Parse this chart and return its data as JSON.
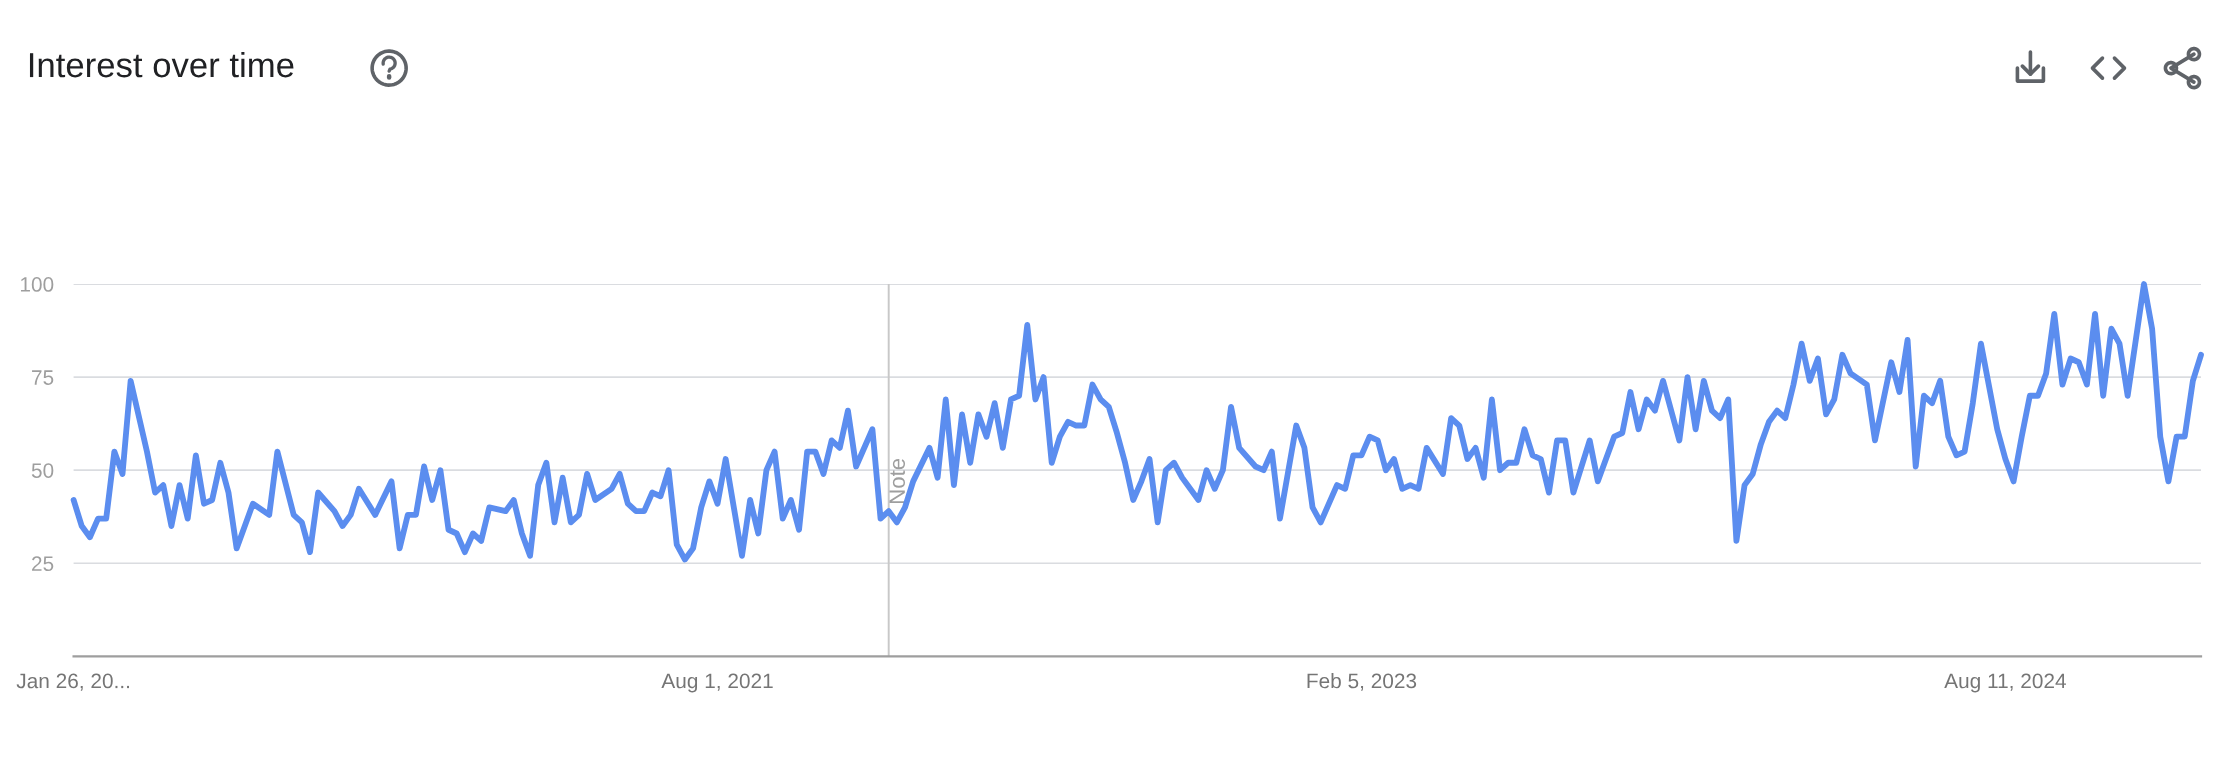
{
  "chart_data": {
    "type": "line",
    "title": "Interest over time",
    "x": [
      "2020-01-26",
      "2020-02-02",
      "2020-02-09",
      "2020-02-16",
      "2020-02-23",
      "2020-03-01",
      "2020-03-08",
      "2020-03-15",
      "2020-03-29",
      "2020-04-05",
      "2020-04-12",
      "2020-04-19",
      "2020-04-26",
      "2020-05-03",
      "2020-05-10",
      "2020-05-17",
      "2020-05-24",
      "2020-05-31",
      "2020-06-07",
      "2020-06-14",
      "2020-06-28",
      "2020-07-12",
      "2020-07-19",
      "2020-08-02",
      "2020-08-09",
      "2020-08-16",
      "2020-08-23",
      "2020-09-06",
      "2020-09-13",
      "2020-09-20",
      "2020-09-27",
      "2020-10-11",
      "2020-10-25",
      "2020-11-01",
      "2020-11-08",
      "2020-11-15",
      "2020-11-22",
      "2020-11-29",
      "2020-12-06",
      "2020-12-13",
      "2020-12-20",
      "2020-12-27",
      "2021-01-03",
      "2021-01-10",
      "2021-01-17",
      "2021-01-31",
      "2021-02-07",
      "2021-02-14",
      "2021-02-21",
      "2021-02-28",
      "2021-03-07",
      "2021-03-14",
      "2021-03-21",
      "2021-03-28",
      "2021-04-04",
      "2021-04-11",
      "2021-04-18",
      "2021-05-02",
      "2021-05-09",
      "2021-05-16",
      "2021-05-23",
      "2021-05-30",
      "2021-06-06",
      "2021-06-13",
      "2021-06-20",
      "2021-06-27",
      "2021-07-04",
      "2021-07-11",
      "2021-07-18",
      "2021-07-25",
      "2021-08-01",
      "2021-08-08",
      "2021-08-22",
      "2021-08-29",
      "2021-09-05",
      "2021-09-12",
      "2021-09-19",
      "2021-09-26",
      "2021-10-03",
      "2021-10-10",
      "2021-10-17",
      "2021-10-24",
      "2021-10-31",
      "2021-11-07",
      "2021-11-14",
      "2021-11-21",
      "2021-11-28",
      "2021-12-12",
      "2021-12-19",
      "2021-12-26",
      "2022-01-02",
      "2022-01-09",
      "2022-01-16",
      "2022-01-30",
      "2022-02-06",
      "2022-02-13",
      "2022-02-20",
      "2022-02-27",
      "2022-03-06",
      "2022-03-13",
      "2022-03-20",
      "2022-03-27",
      "2022-04-03",
      "2022-04-10",
      "2022-04-17",
      "2022-04-24",
      "2022-05-01",
      "2022-05-08",
      "2022-05-15",
      "2022-05-22",
      "2022-05-29",
      "2022-06-05",
      "2022-06-12",
      "2022-06-19",
      "2022-06-26",
      "2022-07-03",
      "2022-07-10",
      "2022-07-17",
      "2022-07-24",
      "2022-07-31",
      "2022-08-07",
      "2022-08-14",
      "2022-08-21",
      "2022-08-28",
      "2022-09-04",
      "2022-09-18",
      "2022-09-25",
      "2022-10-02",
      "2022-10-09",
      "2022-10-16",
      "2022-10-23",
      "2022-11-06",
      "2022-11-13",
      "2022-11-20",
      "2022-11-27",
      "2022-12-11",
      "2022-12-18",
      "2022-12-25",
      "2023-01-01",
      "2023-01-15",
      "2023-01-22",
      "2023-01-29",
      "2023-02-05",
      "2023-02-12",
      "2023-02-19",
      "2023-02-26",
      "2023-03-05",
      "2023-03-12",
      "2023-03-19",
      "2023-03-26",
      "2023-04-02",
      "2023-04-16",
      "2023-04-23",
      "2023-04-30",
      "2023-05-07",
      "2023-05-14",
      "2023-05-21",
      "2023-05-28",
      "2023-06-04",
      "2023-06-11",
      "2023-06-18",
      "2023-06-25",
      "2023-07-02",
      "2023-07-09",
      "2023-07-16",
      "2023-07-23",
      "2023-07-30",
      "2023-08-06",
      "2023-08-20",
      "2023-08-27",
      "2023-09-10",
      "2023-09-17",
      "2023-09-24",
      "2023-10-01",
      "2023-10-08",
      "2023-10-15",
      "2023-10-22",
      "2023-11-05",
      "2023-11-12",
      "2023-11-19",
      "2023-11-26",
      "2023-12-03",
      "2023-12-10",
      "2023-12-17",
      "2023-12-24",
      "2023-12-31",
      "2024-01-07",
      "2024-01-14",
      "2024-01-21",
      "2024-01-28",
      "2024-02-04",
      "2024-02-11",
      "2024-02-18",
      "2024-02-25",
      "2024-03-03",
      "2024-03-10",
      "2024-03-17",
      "2024-03-24",
      "2024-03-31",
      "2024-04-14",
      "2024-04-21",
      "2024-05-05",
      "2024-05-12",
      "2024-05-19",
      "2024-05-26",
      "2024-06-02",
      "2024-06-09",
      "2024-06-16",
      "2024-06-23",
      "2024-06-30",
      "2024-07-07",
      "2024-07-14",
      "2024-07-21",
      "2024-08-04",
      "2024-08-11",
      "2024-08-18",
      "2024-08-25",
      "2024-09-01",
      "2024-09-08",
      "2024-09-15",
      "2024-09-22",
      "2024-09-29",
      "2024-10-06",
      "2024-10-13",
      "2024-10-20",
      "2024-10-27",
      "2024-11-03",
      "2024-11-10",
      "2024-11-17",
      "2024-11-24",
      "2024-12-08",
      "2024-12-15",
      "2024-12-22",
      "2024-12-29",
      "2025-01-05",
      "2025-01-12",
      "2025-01-19",
      "2025-01-26"
    ],
    "series": [
      {
        "color": "#5b8def",
        "values": [
          42,
          35,
          32,
          37,
          37,
          55,
          49,
          74,
          55,
          44,
          46,
          35,
          46,
          37,
          54,
          41,
          42,
          52,
          44,
          29,
          41,
          38,
          55,
          38,
          36,
          28,
          44,
          39,
          35,
          38,
          45,
          38,
          47,
          29,
          38,
          38,
          51,
          42,
          50,
          34,
          33,
          28,
          33,
          31,
          40,
          39,
          42,
          33,
          27,
          46,
          52,
          36,
          48,
          36,
          38,
          49,
          42,
          45,
          49,
          41,
          39,
          39,
          44,
          43,
          50,
          30,
          26,
          29,
          40,
          47,
          41,
          53,
          27,
          42,
          33,
          50,
          55,
          37,
          42,
          34,
          55,
          55,
          49,
          58,
          56,
          66,
          51,
          61,
          37,
          39,
          36,
          40,
          47,
          56,
          48,
          69,
          46,
          65,
          52,
          65,
          59,
          68,
          56,
          69,
          70,
          89,
          69,
          75,
          52,
          59,
          63,
          62,
          62,
          73,
          69,
          67,
          60,
          52,
          42,
          47,
          53,
          36,
          50,
          52,
          48,
          42,
          50,
          45,
          50,
          67,
          56,
          51,
          50,
          55,
          37,
          62,
          56,
          40,
          36,
          46,
          45,
          54,
          54,
          59,
          58,
          50,
          53,
          45,
          46,
          45,
          56,
          49,
          64,
          62,
          53,
          56,
          48,
          69,
          50,
          52,
          52,
          61,
          54,
          53,
          44,
          58,
          58,
          44,
          58,
          47,
          59,
          60,
          71,
          61,
          69,
          66,
          74,
          58,
          75,
          61,
          74,
          66,
          64,
          69,
          31,
          46,
          49,
          57,
          63,
          66,
          64,
          73,
          84,
          74,
          80,
          65,
          69,
          81,
          76,
          73,
          58,
          79,
          71,
          85,
          51,
          70,
          68,
          74,
          59,
          54,
          55,
          68,
          84,
          61,
          53,
          47,
          59,
          70,
          70,
          76,
          92,
          73,
          80,
          79,
          73,
          92,
          70,
          88,
          84,
          70,
          100,
          88,
          59,
          47,
          59,
          59,
          74,
          81
        ]
      }
    ],
    "xlim": [
      "2020-01-26",
      "2025-01-26"
    ],
    "xticks": [
      {
        "value": "2020-01-26",
        "label": "Jan 26, 20..."
      },
      {
        "value": "2021-08-01",
        "label": "Aug 1, 2021"
      },
      {
        "value": "2023-02-05",
        "label": "Feb 5, 2023"
      },
      {
        "value": "2024-08-11",
        "label": "Aug 11, 2024"
      }
    ],
    "ylim": [
      0,
      100
    ],
    "yticks": [
      25,
      50,
      75,
      100
    ],
    "grid": "y",
    "marker": "none",
    "line_style": "solid",
    "ref_lines": [
      {
        "axis": "x",
        "value": "2021-12-26",
        "label": "Note",
        "color": "#c8c8c8"
      }
    ]
  }
}
